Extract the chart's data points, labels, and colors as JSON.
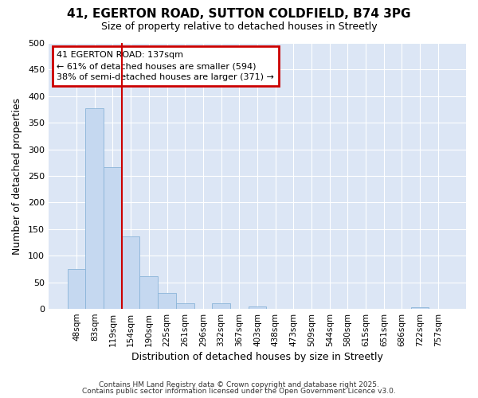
{
  "title_line1": "41, EGERTON ROAD, SUTTON COLDFIELD, B74 3PG",
  "title_line2": "Size of property relative to detached houses in Streetly",
  "xlabel": "Distribution of detached houses by size in Streetly",
  "ylabel": "Number of detached properties",
  "bar_color": "#c5d8f0",
  "bar_edge_color": "#8ab4d8",
  "bg_color": "#dce6f5",
  "grid_color": "#ffffff",
  "bins": [
    "48sqm",
    "83sqm",
    "119sqm",
    "154sqm",
    "190sqm",
    "225sqm",
    "261sqm",
    "296sqm",
    "332sqm",
    "367sqm",
    "403sqm",
    "438sqm",
    "473sqm",
    "509sqm",
    "544sqm",
    "580sqm",
    "615sqm",
    "651sqm",
    "686sqm",
    "722sqm",
    "757sqm"
  ],
  "values": [
    75,
    378,
    267,
    137,
    62,
    30,
    10,
    0,
    10,
    0,
    5,
    0,
    0,
    0,
    0,
    0,
    0,
    0,
    0,
    3,
    0
  ],
  "property_line_color": "#cc0000",
  "property_line_bin": 2,
  "annotation_line1": "41 EGERTON ROAD: 137sqm",
  "annotation_line2": "← 61% of detached houses are smaller (594)",
  "annotation_line3": "38% of semi-detached houses are larger (371) →",
  "annotation_box_color": "#cc0000",
  "ylim": [
    0,
    500
  ],
  "yticks": [
    0,
    50,
    100,
    150,
    200,
    250,
    300,
    350,
    400,
    450,
    500
  ],
  "footer_line1": "Contains HM Land Registry data © Crown copyright and database right 2025.",
  "footer_line2": "Contains public sector information licensed under the Open Government Licence v3.0.",
  "fig_bg": "#ffffff"
}
